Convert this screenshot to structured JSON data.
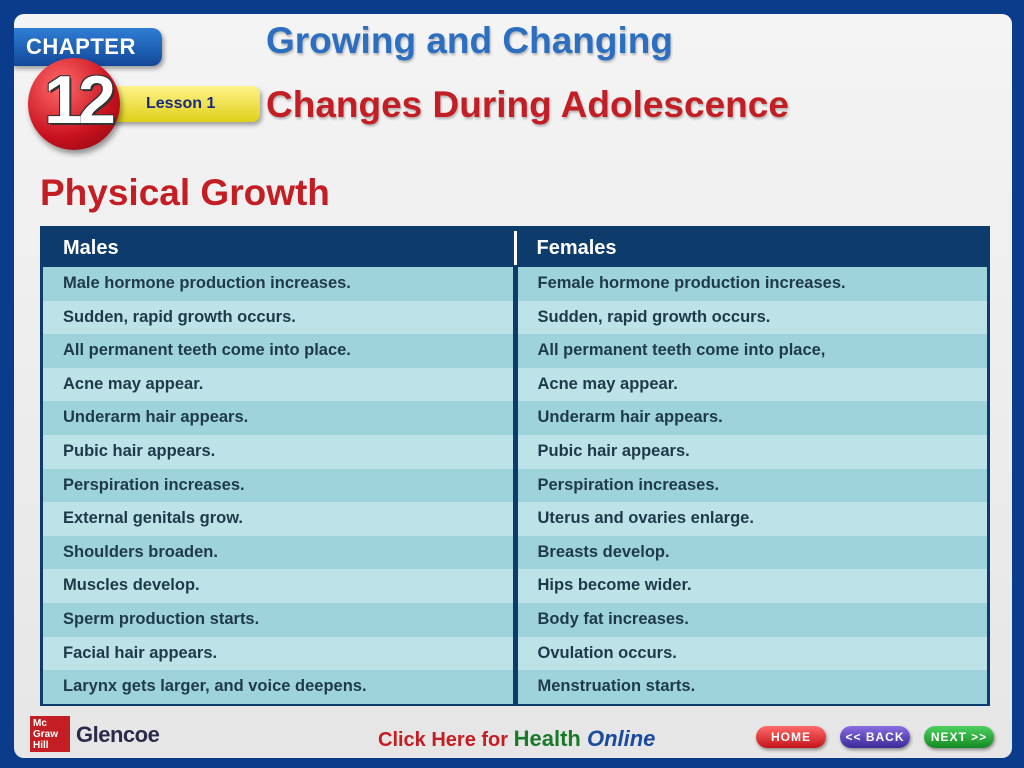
{
  "header": {
    "chapter_label": "CHAPTER",
    "chapter_number": "12",
    "lesson_label": "Lesson 1",
    "title": "Growing and Changing",
    "subtitle": "Changes During Adolescence"
  },
  "section_heading": "Physical Growth",
  "table": {
    "headers": [
      "Males",
      "Females"
    ],
    "rows": [
      [
        "Male hormone production increases.",
        "Female hormone production increases."
      ],
      [
        "Sudden, rapid growth occurs.",
        "Sudden, rapid growth occurs."
      ],
      [
        "All permanent teeth come into place.",
        "All permanent teeth come into place,"
      ],
      [
        "Acne may appear.",
        "Acne may appear."
      ],
      [
        "Underarm hair appears.",
        "Underarm hair appears."
      ],
      [
        "Pubic hair appears.",
        "Pubic hair appears."
      ],
      [
        "Perspiration increases.",
        "Perspiration increases."
      ],
      [
        "External genitals grow.",
        "Uterus and ovaries enlarge."
      ],
      [
        "Shoulders broaden.",
        "Breasts develop."
      ],
      [
        "Muscles develop.",
        "Hips become wider."
      ],
      [
        "Sperm production starts.",
        "Body fat increases."
      ],
      [
        "Facial hair appears.",
        "Ovulation occurs."
      ],
      [
        "Larynx gets larger, and voice deepens.",
        "Menstruation starts."
      ]
    ]
  },
  "footer": {
    "publisher_logo": "Mc Graw Hill",
    "publisher": "Glencoe",
    "link_part1": "Click Here for ",
    "link_part2": "Health ",
    "link_part3": "Online",
    "home_label": "HOME",
    "back_label": "<< BACK",
    "next_label": "NEXT >>"
  },
  "colors": {
    "background": "#0b3c8c",
    "title_blue": "#2c6fc0",
    "title_red": "#c41e25",
    "table_header": "#0d3c6c",
    "row_dark": "#9fd3dc",
    "row_light": "#bde2e8"
  }
}
